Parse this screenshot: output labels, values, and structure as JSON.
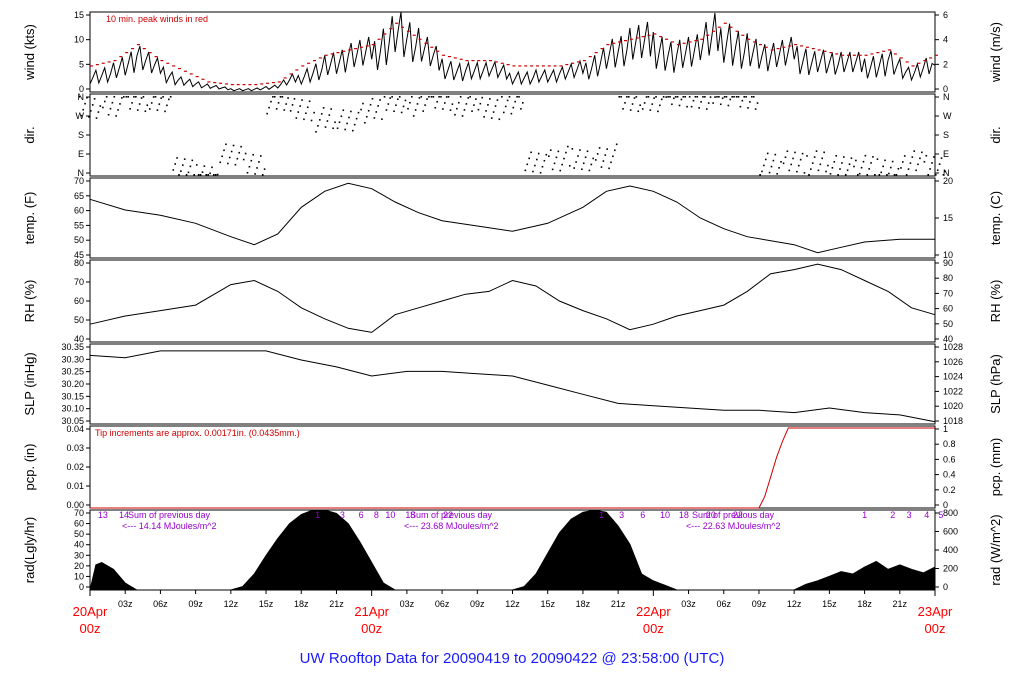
{
  "footer_title": "UW Rooftop Data for 20090419  to  20090422 @ 23:58:00  (UTC)",
  "chart_data": {
    "type": "line",
    "x_axis": {
      "day_labels": [
        {
          "day": "20Apr",
          "hour": "00z"
        },
        {
          "day": "21Apr",
          "hour": "00z"
        },
        {
          "day": "22Apr",
          "hour": "00z"
        },
        {
          "day": "23Apr",
          "hour": "00z"
        }
      ],
      "hour_ticks": [
        "03z",
        "06z",
        "09z",
        "12z",
        "15z",
        "18z",
        "21z"
      ],
      "range_hours": [
        0,
        72
      ]
    },
    "panels": [
      {
        "id": "wind",
        "left_label": "wind (kts)",
        "right_label": "wind (m/s)",
        "left_ticks": [
          "0",
          "5",
          "10",
          "15"
        ],
        "right_ticks": [
          "0",
          "2",
          "4",
          "6"
        ],
        "ylim": [
          0,
          15
        ],
        "annotation": "10 min. peak winds in red",
        "series": [
          {
            "name": "wind speed",
            "color": "#000000",
            "x": [
              0,
              2,
              4,
              6,
              8,
              10,
              12,
              14,
              16,
              18,
              20,
              22,
              24,
              26,
              28,
              30,
              32,
              34,
              36,
              38,
              40,
              42,
              44,
              46,
              48,
              50,
              52,
              54,
              56,
              58,
              60,
              62,
              64,
              66,
              68,
              70,
              72
            ],
            "y": [
              3,
              4,
              6,
              4,
              2,
              1,
              0.5,
              0.5,
              1,
              3,
              5,
              6,
              7,
              12,
              8,
              5,
              4,
              4,
              3,
              3,
              3,
              4,
              7,
              8,
              9,
              7,
              8,
              11,
              8,
              6,
              7,
              6,
              5,
              5,
              6,
              3,
              5
            ]
          },
          {
            "name": "10 min. peak winds",
            "color": "#cc0000",
            "x": [
              0,
              2,
              4,
              6,
              8,
              10,
              12,
              14,
              16,
              18,
              20,
              22,
              24,
              26,
              28,
              30,
              32,
              34,
              36,
              38,
              40,
              42,
              44,
              46,
              48,
              50,
              52,
              54,
              56,
              58,
              60,
              62,
              64,
              66,
              68,
              70,
              72
            ],
            "y": [
              5,
              6,
              9,
              6,
              4,
              2,
              1.5,
              1.5,
              2,
              5,
              7,
              8,
              9,
              13,
              10,
              7,
              6,
              6,
              5,
              5,
              5,
              6,
              9,
              10,
              11,
              9,
              10,
              13,
              10,
              8,
              9,
              8,
              7,
              7,
              8,
              5,
              7
            ]
          }
        ]
      },
      {
        "id": "dir",
        "left_label": "dir.",
        "right_label": "dir.",
        "left_ticks": [
          "N",
          "E",
          "S",
          "W",
          "N"
        ],
        "right_ticks": [
          "N",
          "E",
          "S",
          "W",
          "N"
        ],
        "ylim": [
          0,
          360
        ],
        "series": [
          {
            "name": "wind direction",
            "color": "#000000",
            "x": [
              0,
              2,
              4,
              6,
              8,
              10,
              12,
              14,
              16,
              18,
              20,
              22,
              24,
              26,
              28,
              30,
              32,
              34,
              36,
              38,
              40,
              42,
              44,
              46,
              48,
              50,
              52,
              54,
              56,
              58,
              60,
              62,
              64,
              66,
              68,
              70,
              72
            ],
            "y": [
              300,
              320,
              330,
              340,
              30,
              10,
              90,
              60,
              330,
              300,
              250,
              250,
              290,
              330,
              320,
              340,
              320,
              300,
              330,
              60,
              80,
              70,
              90,
              330,
              340,
              350,
              350,
              350,
              350,
              50,
              70,
              60,
              50,
              40,
              30,
              60,
              45
            ]
          }
        ]
      },
      {
        "id": "temp",
        "left_label": "temp. (F)",
        "right_label": "temp. (C)",
        "left_ticks": [
          "45",
          "50",
          "55",
          "60",
          "65",
          "70"
        ],
        "right_ticks": [
          "10",
          "15",
          "20"
        ],
        "ylim": [
          43,
          73
        ],
        "series": [
          {
            "name": "temperature",
            "color": "#000000",
            "x": [
              0,
              3,
              6,
              9,
              12,
              14,
              16,
              18,
              20,
              22,
              24,
              26,
              28,
              30,
              33,
              36,
              39,
              42,
              44,
              46,
              48,
              50,
              52,
              54,
              56,
              60,
              62,
              64,
              66,
              69,
              72
            ],
            "y": [
              65,
              61,
              59,
              56,
              51,
              48,
              52,
              62,
              68,
              71,
              69,
              64,
              60,
              57,
              55,
              53,
              56,
              62,
              68,
              70,
              68,
              64,
              58,
              54,
              51,
              48,
              45,
              47,
              49,
              50,
              50
            ]
          }
        ]
      },
      {
        "id": "rh",
        "left_label": "RH (%)",
        "right_label": "RH (%)",
        "left_ticks": [
          "40",
          "50",
          "60",
          "70",
          "80"
        ],
        "right_ticks": [
          "40",
          "50",
          "60",
          "70",
          "80",
          "90"
        ],
        "ylim": [
          35,
          95
        ],
        "series": [
          {
            "name": "relative humidity",
            "color": "#000000",
            "x": [
              0,
              3,
              6,
              9,
              12,
              14,
              16,
              18,
              20,
              22,
              24,
              26,
              28,
              30,
              32,
              34,
              36,
              38,
              40,
              42,
              44,
              46,
              48,
              50,
              52,
              54,
              56,
              58,
              60,
              62,
              64,
              66,
              68,
              70,
              72
            ],
            "y": [
              48,
              54,
              58,
              62,
              77,
              80,
              72,
              60,
              52,
              45,
              42,
              55,
              60,
              65,
              70,
              72,
              80,
              76,
              65,
              58,
              52,
              44,
              48,
              54,
              58,
              62,
              72,
              85,
              88,
              92,
              88,
              80,
              72,
              60,
              55
            ]
          }
        ]
      },
      {
        "id": "slp",
        "left_label": "SLP (inHg)",
        "right_label": "SLP (hPa)",
        "left_ticks": [
          "30.05",
          "30.10",
          "30.15",
          "30.20",
          "30.25",
          "30.30",
          "30.35"
        ],
        "right_ticks": [
          "1018",
          "1020",
          "1022",
          "1024",
          "1026",
          "1028"
        ],
        "ylim": [
          30.03,
          30.38
        ],
        "series": [
          {
            "name": "sea level pressure",
            "color": "#000000",
            "x": [
              0,
              3,
              6,
              9,
              12,
              15,
              18,
              21,
              24,
              27,
              30,
              33,
              36,
              39,
              42,
              45,
              48,
              51,
              54,
              57,
              60,
              63,
              66,
              69,
              72
            ],
            "y": [
              30.33,
              30.32,
              30.35,
              30.35,
              30.35,
              30.35,
              30.31,
              30.28,
              30.24,
              30.26,
              30.26,
              30.25,
              30.24,
              30.2,
              30.16,
              30.12,
              30.11,
              30.1,
              30.09,
              30.09,
              30.08,
              30.1,
              30.08,
              30.07,
              30.04
            ]
          }
        ]
      },
      {
        "id": "pcp",
        "left_label": "pcp. (in)",
        "right_label": "pcp. (mm)",
        "left_ticks": [
          "0.00",
          "0.01",
          "0.02",
          "0.03",
          "0.04"
        ],
        "right_ticks": [
          "0",
          "0.2",
          "0.4",
          "0.6",
          "0.8",
          "1"
        ],
        "ylim": [
          0,
          0.042
        ],
        "annotation": "Tip increments are approx. 0.00171in. (0.0435mm.)",
        "series": [
          {
            "name": "accumulated precipitation",
            "color": "#cc0000",
            "x": [
              0,
              57,
              57.5,
              58,
              58.5,
              59,
              59.5,
              72
            ],
            "y": [
              0,
              0,
              0.006,
              0.016,
              0.026,
              0.034,
              0.041,
              0.041
            ]
          }
        ]
      },
      {
        "id": "rad",
        "left_label": "rad(Lgly/hr)",
        "right_label": "rad (W/m^2)",
        "left_ticks": [
          "0",
          "10",
          "20",
          "30",
          "40",
          "50",
          "60",
          "70"
        ],
        "right_ticks": [
          "0",
          "200",
          "400",
          "600",
          "800"
        ],
        "ylim": [
          0,
          70
        ],
        "series": [
          {
            "name": "solar radiation",
            "color": "#000000",
            "fill": true,
            "x": [
              0,
              0.5,
              1,
              2,
              3,
              4,
              12,
              13,
              14,
              15,
              16,
              17,
              18,
              19,
              20,
              21,
              22,
              23,
              24,
              25,
              26,
              27,
              28,
              36,
              37,
              38,
              39,
              40,
              41,
              42,
              43,
              44,
              45,
              46,
              47,
              48,
              49,
              50,
              51,
              52,
              60,
              61,
              62,
              63,
              64,
              65,
              66,
              67,
              68,
              69,
              70,
              71,
              72
            ],
            "y": [
              0,
              22,
              24,
              18,
              6,
              0,
              0,
              3,
              14,
              30,
              45,
              58,
              66,
              70,
              70,
              67,
              58,
              42,
              24,
              6,
              0,
              0,
              0,
              0,
              3,
              14,
              32,
              50,
              62,
              68,
              70,
              68,
              56,
              40,
              14,
              8,
              4,
              0,
              0,
              0,
              0,
              5,
              8,
              12,
              16,
              14,
              20,
              25,
              18,
              22,
              18,
              15,
              20
            ]
          }
        ],
        "daily_sums": [
          {
            "label": "Sum of previous day",
            "value": "<--- 14.14 MJoules/m^2"
          },
          {
            "label": "Sum of previous day",
            "value": "<--- 23.68 MJoules/m^2"
          },
          {
            "label": "Sum of previous day",
            "value": "<--- 22.63 MJoules/m^2"
          }
        ],
        "hour_numbers": [
          {
            "x": 1.1,
            "label": "13"
          },
          {
            "x": 2.9,
            "label": "14"
          },
          {
            "x": 19.4,
            "label": "1"
          },
          {
            "x": 21.5,
            "label": "3"
          },
          {
            "x": 23.1,
            "label": "6"
          },
          {
            "x": 24.4,
            "label": "8"
          },
          {
            "x": 25.6,
            "label": "10"
          },
          {
            "x": 27.3,
            "label": "18"
          },
          {
            "x": 30.5,
            "label": "22"
          },
          {
            "x": 43.6,
            "label": "1"
          },
          {
            "x": 45.3,
            "label": "3"
          },
          {
            "x": 47.1,
            "label": "6"
          },
          {
            "x": 49.0,
            "label": "10"
          },
          {
            "x": 50.6,
            "label": "18"
          },
          {
            "x": 52.9,
            "label": "20"
          },
          {
            "x": 55.2,
            "label": "22"
          },
          {
            "x": 66.0,
            "label": "1"
          },
          {
            "x": 68.4,
            "label": "2"
          },
          {
            "x": 69.8,
            "label": "3"
          },
          {
            "x": 71.3,
            "label": "4"
          },
          {
            "x": 72.5,
            "label": "5"
          }
        ]
      }
    ]
  }
}
